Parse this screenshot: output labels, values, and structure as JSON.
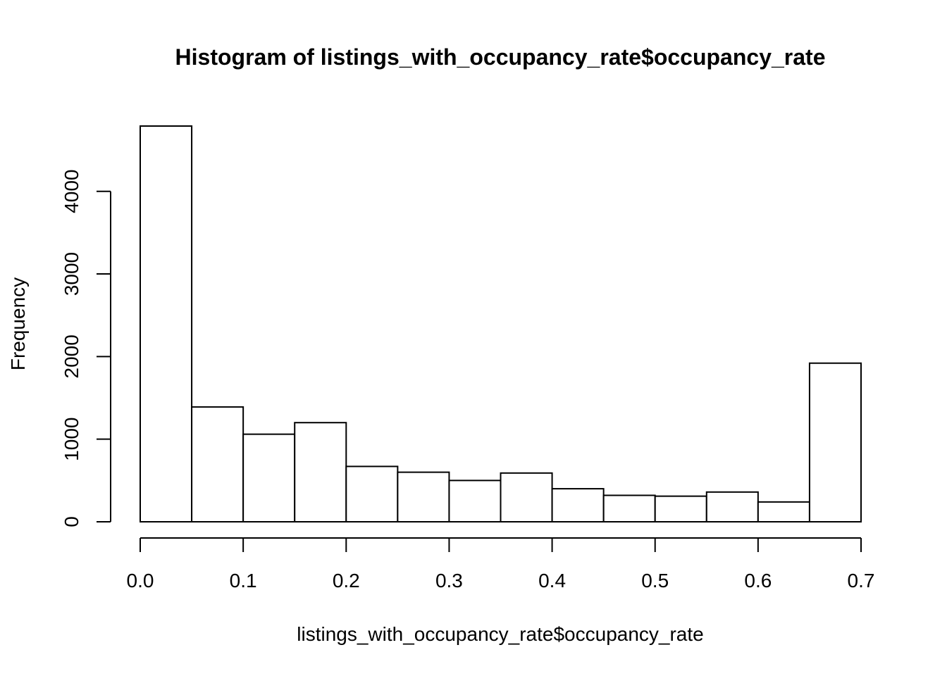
{
  "chart_data": {
    "type": "bar",
    "title": "Histogram of listings_with_occupancy_rate$occupancy_rate",
    "xlabel": "listings_with_occupancy_rate$occupancy_rate",
    "ylabel": "Frequency",
    "bin_edges": [
      0.0,
      0.05,
      0.1,
      0.15,
      0.2,
      0.25,
      0.3,
      0.35,
      0.4,
      0.45,
      0.5,
      0.55,
      0.6,
      0.65,
      0.7
    ],
    "values": [
      4790,
      1390,
      1060,
      1200,
      670,
      600,
      500,
      590,
      400,
      320,
      310,
      360,
      240,
      1920
    ],
    "xlim": [
      0.0,
      0.7
    ],
    "ylim": [
      0,
      4790
    ],
    "x_ticks": [
      "0.0",
      "0.1",
      "0.2",
      "0.3",
      "0.4",
      "0.5",
      "0.6",
      "0.7"
    ],
    "x_tick_values": [
      0.0,
      0.1,
      0.2,
      0.3,
      0.4,
      0.5,
      0.6,
      0.7
    ],
    "y_ticks": [
      "0",
      "1000",
      "2000",
      "3000",
      "4000"
    ],
    "y_tick_values": [
      0,
      1000,
      2000,
      3000,
      4000
    ],
    "bar_fill": "#ffffff",
    "bar_stroke": "#000000",
    "grid": false,
    "legend": "none"
  }
}
